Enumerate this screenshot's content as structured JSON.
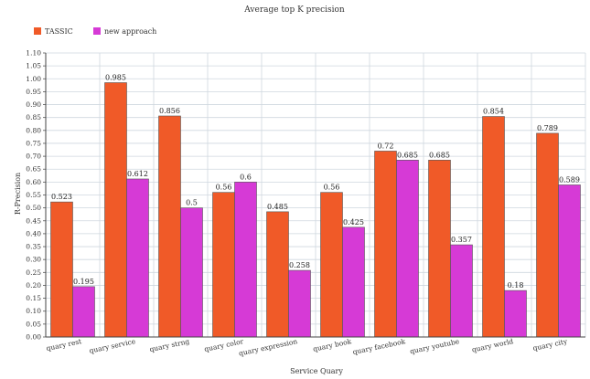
{
  "chart_data": {
    "type": "bar",
    "title": "Average top K precision",
    "xlabel": "Service Quary",
    "ylabel": "R-Precision",
    "ylim": [
      0,
      1.1
    ],
    "ytick_step": 0.05,
    "grid": true,
    "legend_position": "top-left",
    "categories": [
      "quary rest",
      "quary service",
      "quary strng",
      "quary color",
      "quary expression",
      "quary book",
      "quary facebook",
      "quary youtube",
      "quary world",
      "quary city"
    ],
    "series": [
      {
        "name": "TASSIC",
        "color": "#f05a28",
        "values": [
          0.523,
          0.985,
          0.856,
          0.56,
          0.485,
          0.56,
          0.72,
          0.685,
          0.854,
          0.789
        ],
        "labels": [
          "0.523",
          "0.985",
          "0.856",
          "0.56",
          "0.485",
          "0.56",
          "0.72",
          "0.685",
          "0.854",
          "0.789"
        ]
      },
      {
        "name": "new approach",
        "color": "#d63ad6",
        "values": [
          0.195,
          0.612,
          0.5,
          0.6,
          0.258,
          0.425,
          0.685,
          0.357,
          0.18,
          0.589
        ],
        "labels": [
          "0.195",
          "0.612",
          "0.5",
          "0.6",
          "0.258",
          "0.425",
          "0.685",
          "0.357",
          "0.18",
          "0.589"
        ]
      }
    ],
    "yticks": [
      "0.00",
      "0.05",
      "0.10",
      "0.15",
      "0.20",
      "0.25",
      "0.30",
      "0.35",
      "0.40",
      "0.45",
      "0.50",
      "0.55",
      "0.60",
      "0.65",
      "0.70",
      "0.75",
      "0.80",
      "0.85",
      "0.90",
      "0.95",
      "1.00",
      "1.05",
      "1.10"
    ]
  }
}
